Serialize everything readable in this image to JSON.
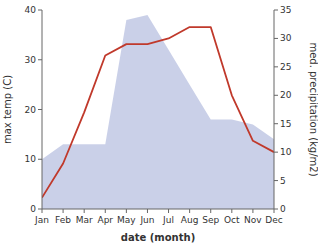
{
  "chart_data": {
    "type": "line",
    "categories": [
      "Jan",
      "Feb",
      "Mar",
      "Apr",
      "May",
      "Jun",
      "Jul",
      "Aug",
      "Sep",
      "Oct",
      "Nov",
      "Dec"
    ],
    "xlabel": "date (month)",
    "ylabel": "max temp (C)",
    "y2label": "med. precipitation (kg/m2)",
    "ylim": [
      0,
      40
    ],
    "yticks": [
      0,
      10,
      20,
      30,
      40
    ],
    "y2lim": [
      0,
      35
    ],
    "y2ticks": [
      0,
      5,
      10,
      15,
      20,
      25,
      30,
      35
    ],
    "grid": false,
    "series": [
      {
        "type": "area",
        "color": "#b8c0e0",
        "values": [
          10,
          13,
          13,
          13,
          38,
          39,
          32,
          25,
          18,
          18,
          17,
          14
        ]
      },
      {
        "type": "line",
        "color": "#c0392b",
        "axis": "y2",
        "values": [
          2,
          8,
          17,
          27,
          29,
          29,
          30,
          32,
          32,
          20,
          12,
          10
        ]
      }
    ]
  }
}
